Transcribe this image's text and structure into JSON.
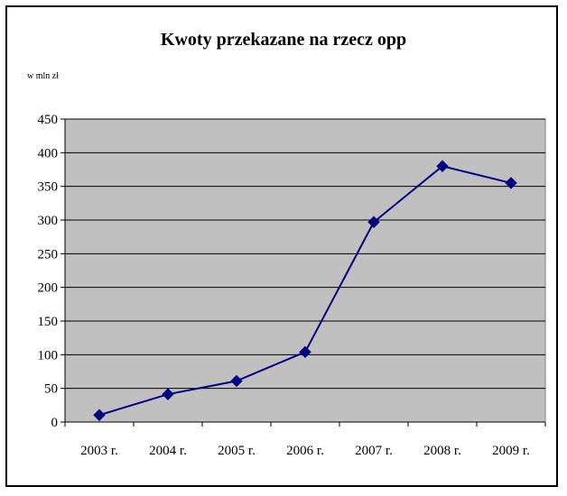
{
  "chart_data": {
    "type": "line",
    "title": "Kwoty przekazane na rzecz opp",
    "unit_label": "w mln zł",
    "xlabel": "",
    "ylabel": "",
    "categories": [
      "2003 r.",
      "2004 r.",
      "2005 r.",
      "2006 r.",
      "2007 r.",
      "2008 r.",
      "2009 r."
    ],
    "series": [
      {
        "values": [
          10.4,
          41.3,
          61.0,
          104.0,
          297.0,
          380.0,
          355.0
        ]
      }
    ],
    "ylim": [
      0,
      450
    ],
    "yticks": [
      0,
      50,
      100,
      150,
      200,
      250,
      300,
      350,
      400,
      450
    ],
    "grid": true,
    "legend": "none",
    "colors": {
      "plot_background": "#c0c0c0",
      "line": "#000080",
      "marker": "#000080",
      "grid": "#000000"
    },
    "marker": "diamond"
  }
}
